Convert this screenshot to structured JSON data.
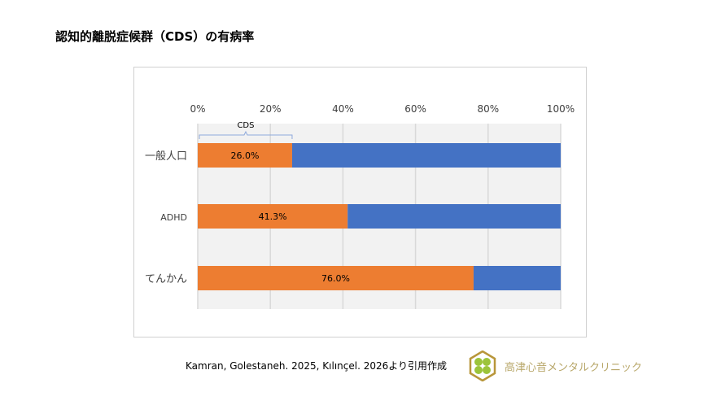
{
  "title": "認知的離脱症候群（CDS）の有病率",
  "citation": "Kamran, Golestaneh. 2025, Kılınçel. 2026より引用作成",
  "clinic_name": "高津心音メンタルクリニック",
  "chart_data": {
    "type": "bar",
    "orientation": "horizontal",
    "stacked": "100%",
    "categories": [
      "一般人口",
      "ADHD",
      "てんかん"
    ],
    "series": [
      {
        "name": "CDS",
        "values": [
          26.0,
          41.3,
          76.0
        ],
        "color": "#ED7D31",
        "labels": [
          "26.0%",
          "41.3%",
          "76.0%"
        ]
      },
      {
        "values": [
          74.0,
          58.7,
          24.0
        ],
        "color": "#4472C4"
      }
    ],
    "xlim": [
      0,
      100
    ],
    "xticks": [
      "0%",
      "20%",
      "40%",
      "60%",
      "80%",
      "100%"
    ],
    "xaxis_position": "top",
    "grid": true,
    "plot_background": "#F2F2F2",
    "annotation": "CDS"
  }
}
